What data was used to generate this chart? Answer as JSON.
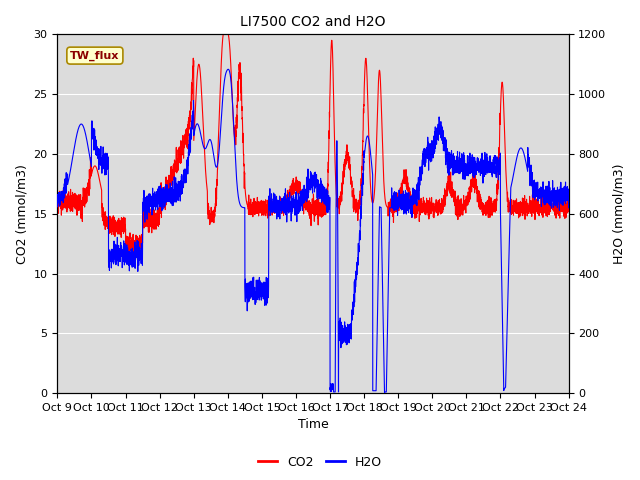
{
  "title": "LI7500 CO2 and H2O",
  "xlabel": "Time",
  "ylabel_left": "CO2 (mmol/m3)",
  "ylabel_right": "H2O (mmol/m3)",
  "xlim": [
    0,
    15
  ],
  "ylim_left": [
    0,
    30
  ],
  "ylim_right": [
    0,
    1200
  ],
  "yticks_left": [
    0,
    5,
    10,
    15,
    20,
    25,
    30
  ],
  "yticks_right": [
    0,
    200,
    400,
    600,
    800,
    1000,
    1200
  ],
  "xtick_labels": [
    "Oct 9",
    "Oct 10",
    "Oct 11",
    "Oct 12",
    "Oct 13",
    "Oct 14",
    "Oct 15",
    "Oct 16",
    "Oct 17",
    "Oct 18",
    "Oct 19",
    "Oct 20",
    "Oct 21",
    "Oct 22",
    "Oct 23",
    "Oct 24"
  ],
  "co2_color": "#FF0000",
  "h2o_color": "#0000FF",
  "background_color": "#DCDCDC",
  "annotation_text": "TW_flux",
  "annotation_bg": "#FFFFCC",
  "annotation_border": "#AA8800",
  "grid_color": "#FFFFFF",
  "line_width": 0.8,
  "title_fontsize": 10,
  "axis_fontsize": 9,
  "tick_fontsize": 8
}
